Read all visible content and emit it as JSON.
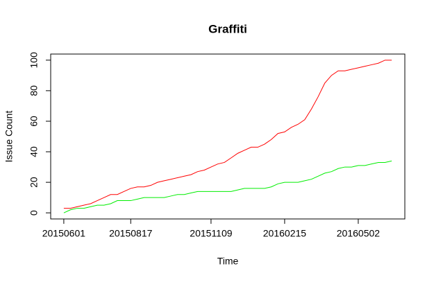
{
  "chart_data": {
    "type": "line",
    "title": "Graffiti",
    "x_label": "Time",
    "y_label": "Issue Count",
    "categories": [
      "20150601",
      null,
      null,
      null,
      null,
      null,
      null,
      null,
      null,
      null,
      "20150817",
      null,
      null,
      null,
      null,
      null,
      null,
      null,
      null,
      null,
      null,
      null,
      "20151109",
      null,
      null,
      null,
      null,
      null,
      null,
      null,
      null,
      null,
      null,
      "20160215",
      null,
      null,
      null,
      null,
      null,
      null,
      null,
      null,
      null,
      null,
      "20160502",
      null,
      null,
      null,
      null,
      null
    ],
    "series": [
      {
        "name": "red",
        "color": "#ff0000",
        "values": [
          3,
          3,
          4,
          5,
          6,
          8,
          10,
          12,
          12,
          14,
          16,
          17,
          17,
          18,
          20,
          21,
          22,
          23,
          24,
          25,
          27,
          28,
          30,
          32,
          33,
          36,
          39,
          41,
          43,
          43,
          45,
          48,
          52,
          53,
          56,
          58,
          61,
          68,
          76,
          85,
          90,
          93,
          93,
          94,
          95,
          96,
          97,
          98,
          100,
          100
        ]
      },
      {
        "name": "green",
        "color": "#00ee00",
        "values": [
          0,
          2,
          3,
          3,
          4,
          5,
          5,
          6,
          8,
          8,
          8,
          9,
          10,
          10,
          10,
          10,
          11,
          12,
          12,
          13,
          14,
          14,
          14,
          14,
          14,
          14,
          15,
          16,
          16,
          16,
          16,
          17,
          19,
          20,
          20,
          20,
          21,
          22,
          24,
          26,
          27,
          29,
          30,
          30,
          31,
          31,
          32,
          33,
          33,
          34
        ]
      }
    ],
    "ylim": [
      -4,
      104
    ],
    "yticks": [
      0,
      20,
      40,
      60,
      80,
      100
    ]
  }
}
